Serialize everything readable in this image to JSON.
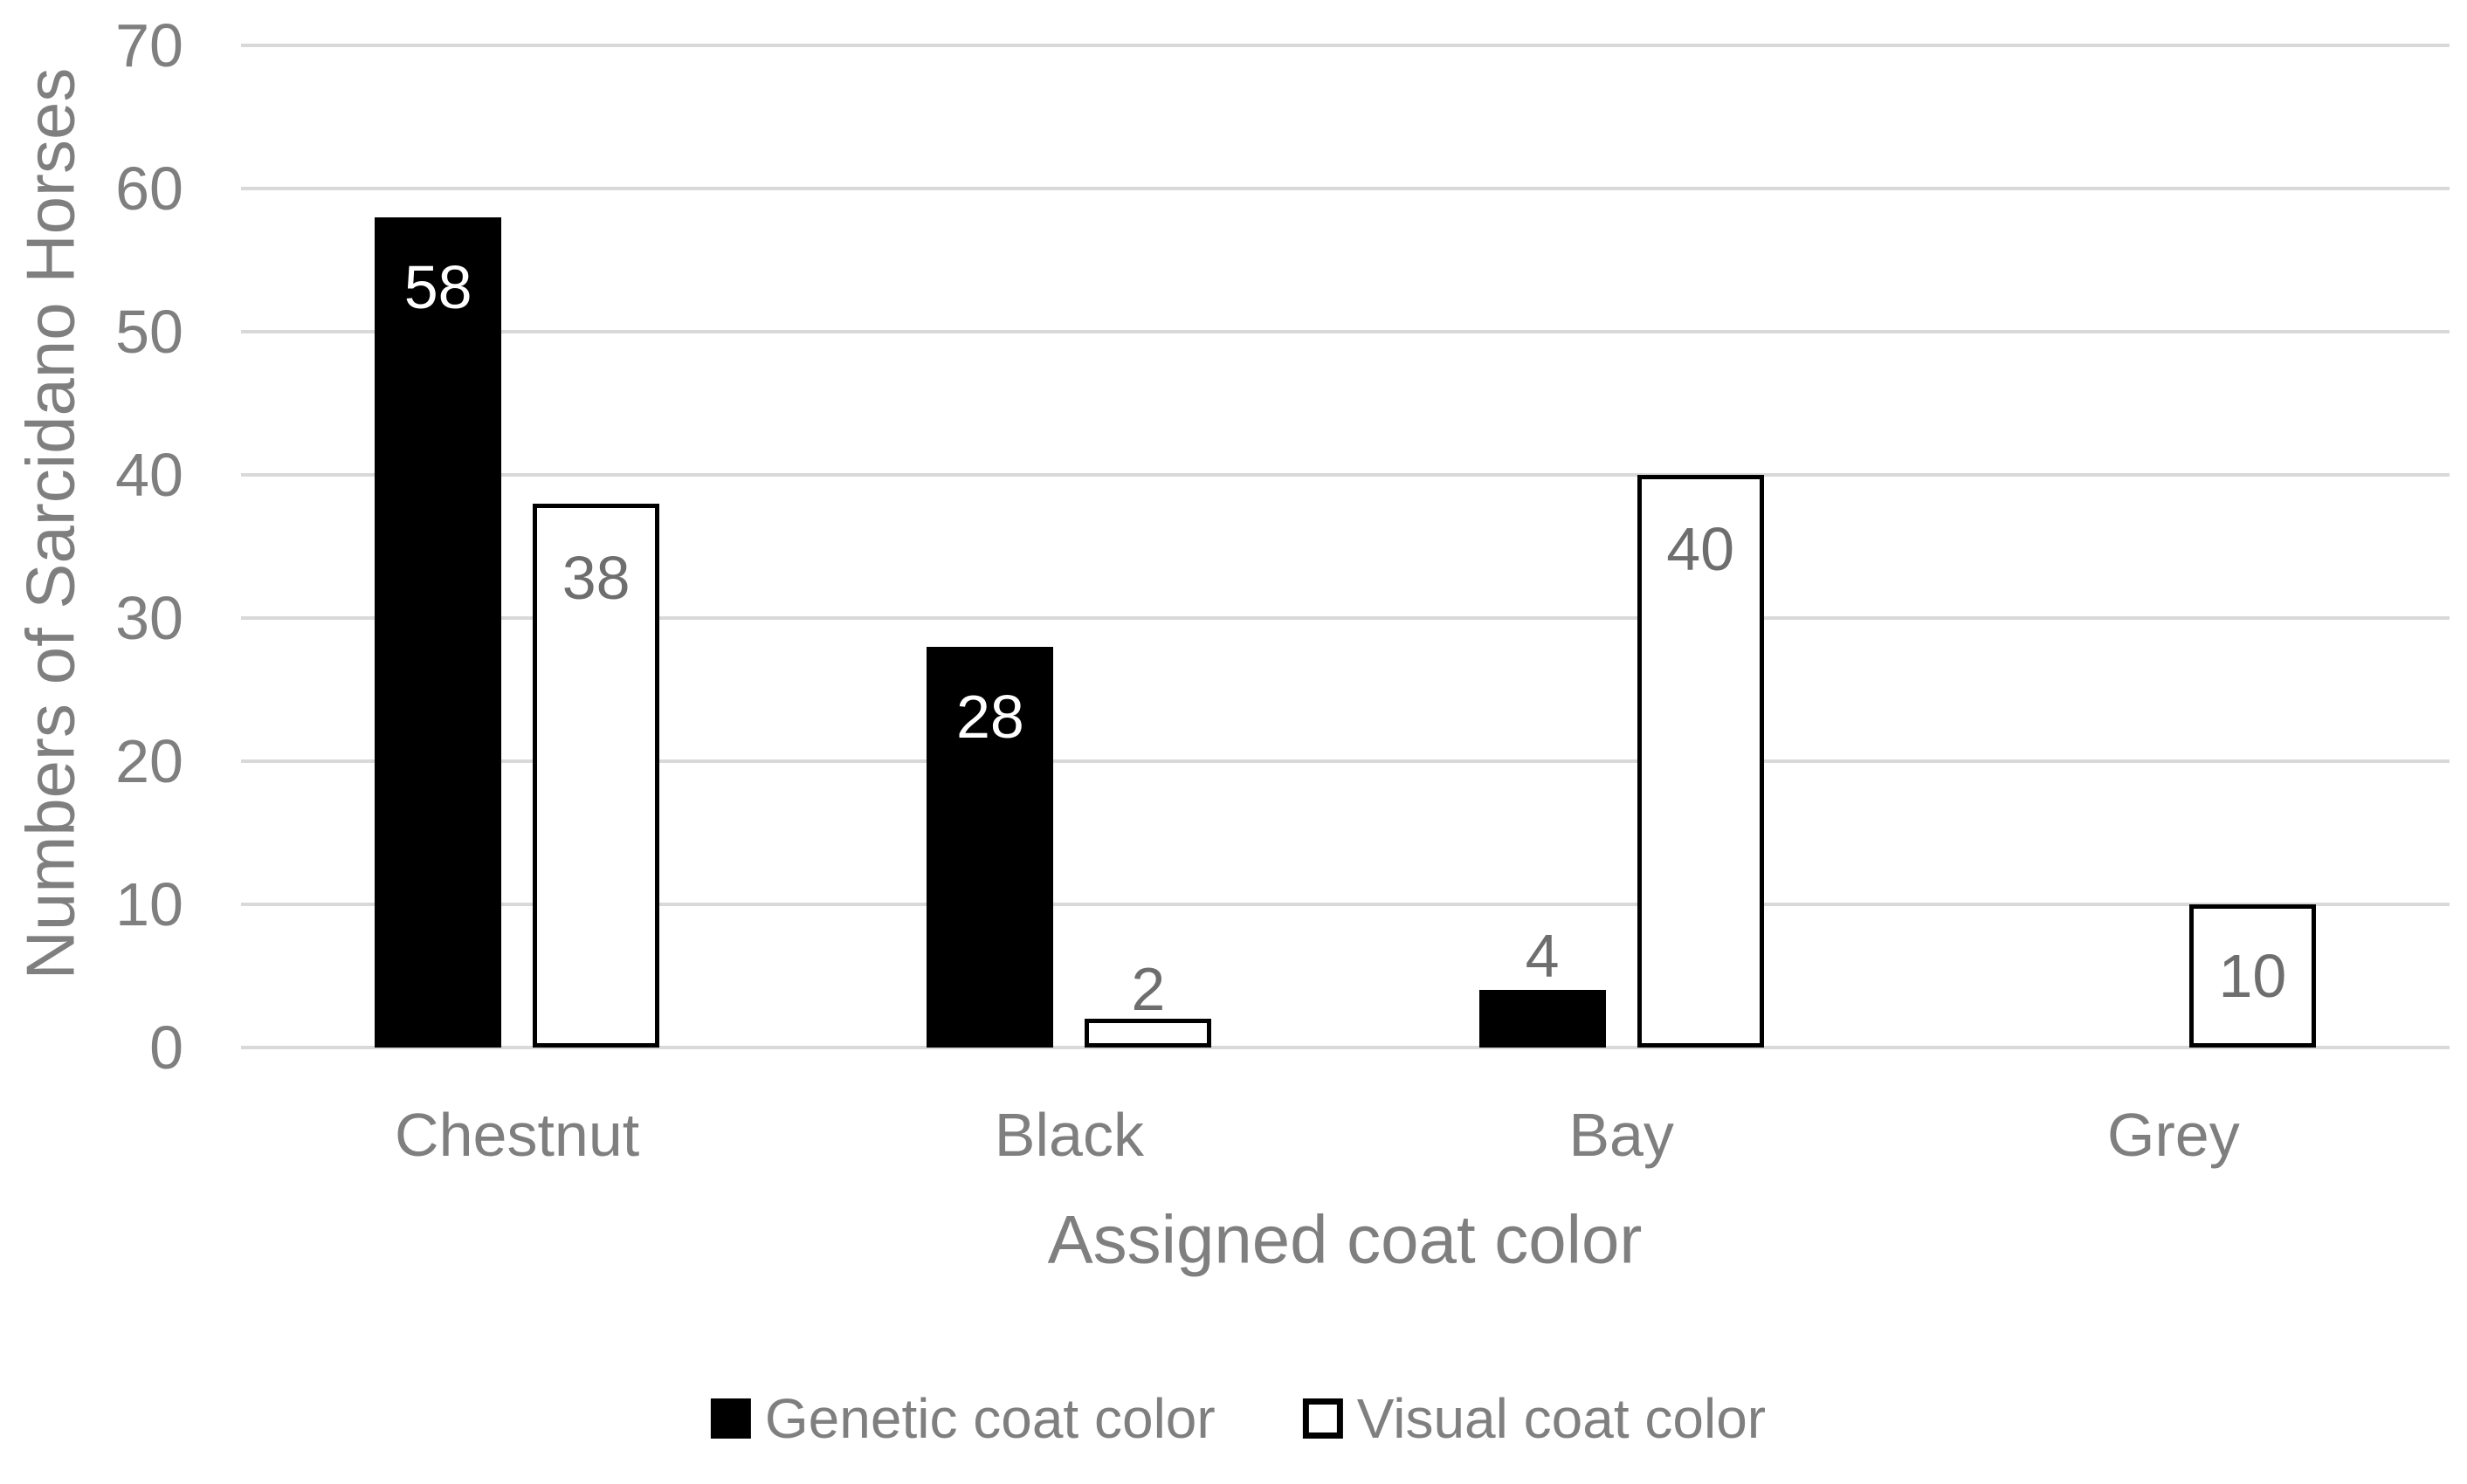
{
  "chart_data": {
    "type": "bar",
    "title": "",
    "categories": [
      "Chestnut",
      "Black",
      "Bay",
      "Grey"
    ],
    "series": [
      {
        "name": "Genetic coat color",
        "values": [
          58,
          28,
          4,
          0
        ]
      },
      {
        "name": "Visual coat color",
        "values": [
          38,
          2,
          40,
          10
        ]
      }
    ],
    "data_labels": {
      "Chestnut": {
        "Genetic coat color": "58",
        "Visual coat color": "38"
      },
      "Black": {
        "Genetic coat color": "28",
        "Visual coat color": "2"
      },
      "Bay": {
        "Genetic coat color": "4",
        "Visual coat color": "40"
      },
      "Grey": {
        "Genetic coat color": null,
        "Visual coat color": "10"
      }
    },
    "xlabel": "Assigned coat color",
    "ylabel": "Numbers of Sarcidano Horses",
    "ylim": [
      0,
      70
    ],
    "yticks": [
      0,
      10,
      20,
      30,
      40,
      50,
      60,
      70
    ],
    "grid": true,
    "legend_position": "bottom",
    "colors": {
      "genetic_fill": "#000000",
      "visual_fill": "#ffffff",
      "visual_border": "#000000",
      "gridline": "#d9d9d9",
      "axis_text": "#7f7f7f",
      "data_label_dark": "#6e6e6e",
      "data_label_light": "#ffffff",
      "background": "#ffffff"
    }
  }
}
